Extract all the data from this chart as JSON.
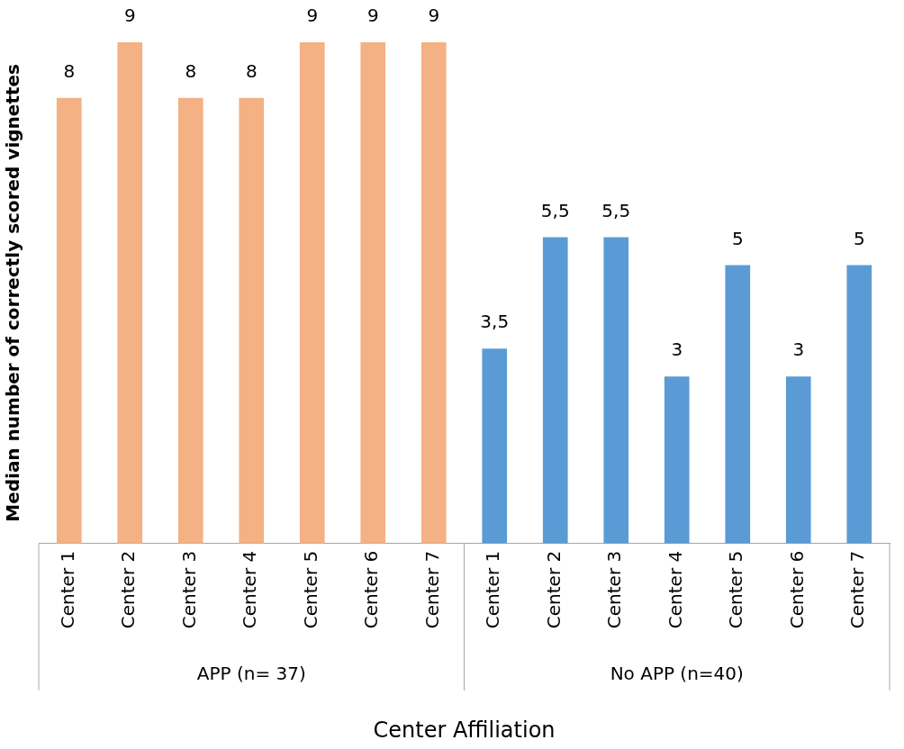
{
  "chart_data": {
    "type": "bar",
    "xlabel": "Center Affiliation",
    "ylabel": "Median number of correctly scored vignettes",
    "categories": [
      "Center 1",
      "Center 2",
      "Center 3",
      "Center 4",
      "Center 5",
      "Center 6",
      "Center 7",
      "Center 1",
      "Center 2",
      "Center 3",
      "Center 4",
      "Center 5",
      "Center 6",
      "Center 7"
    ],
    "annotations": [
      "APP (n= 37)",
      "No APP (n=40)"
    ],
    "series": [
      {
        "color": "#f4b183",
        "values": [
          8,
          9,
          8,
          8,
          9,
          9,
          9,
          null,
          null,
          null,
          null,
          null,
          null,
          null
        ],
        "value_labels": [
          "8",
          "9",
          "8",
          "8",
          "9",
          "9",
          "9",
          null,
          null,
          null,
          null,
          null,
          null,
          null
        ]
      },
      {
        "color": "#5b9bd5",
        "values": [
          null,
          null,
          null,
          null,
          null,
          null,
          null,
          3.5,
          5.5,
          5.5,
          3,
          5,
          3,
          5
        ],
        "value_labels": [
          null,
          null,
          null,
          null,
          null,
          null,
          null,
          "3,5",
          "5,5",
          "5,5",
          "3",
          "5",
          "3",
          "5"
        ]
      }
    ],
    "grid": false,
    "legend": false
  }
}
